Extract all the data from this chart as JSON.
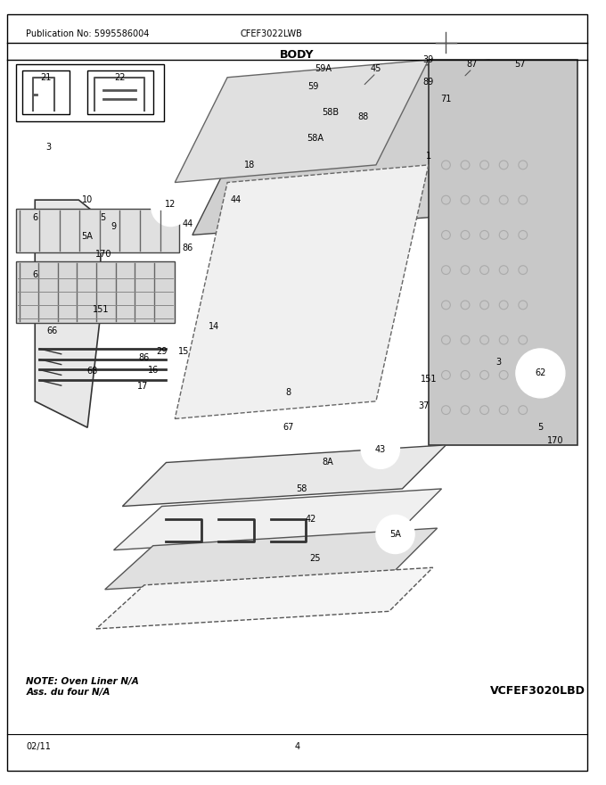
{
  "publication_no": "Publication No: 5995586004",
  "model": "CFEF3022LWB",
  "section": "BODY",
  "note_line1": "NOTE: Oven Liner N/A",
  "note_line2": "Ass. du four N/A",
  "vcfef": "VCFEF3020LBD",
  "date": "02/11",
  "page": "4",
  "bg_color": "#ffffff",
  "border_color": "#000000",
  "text_color": "#000000"
}
